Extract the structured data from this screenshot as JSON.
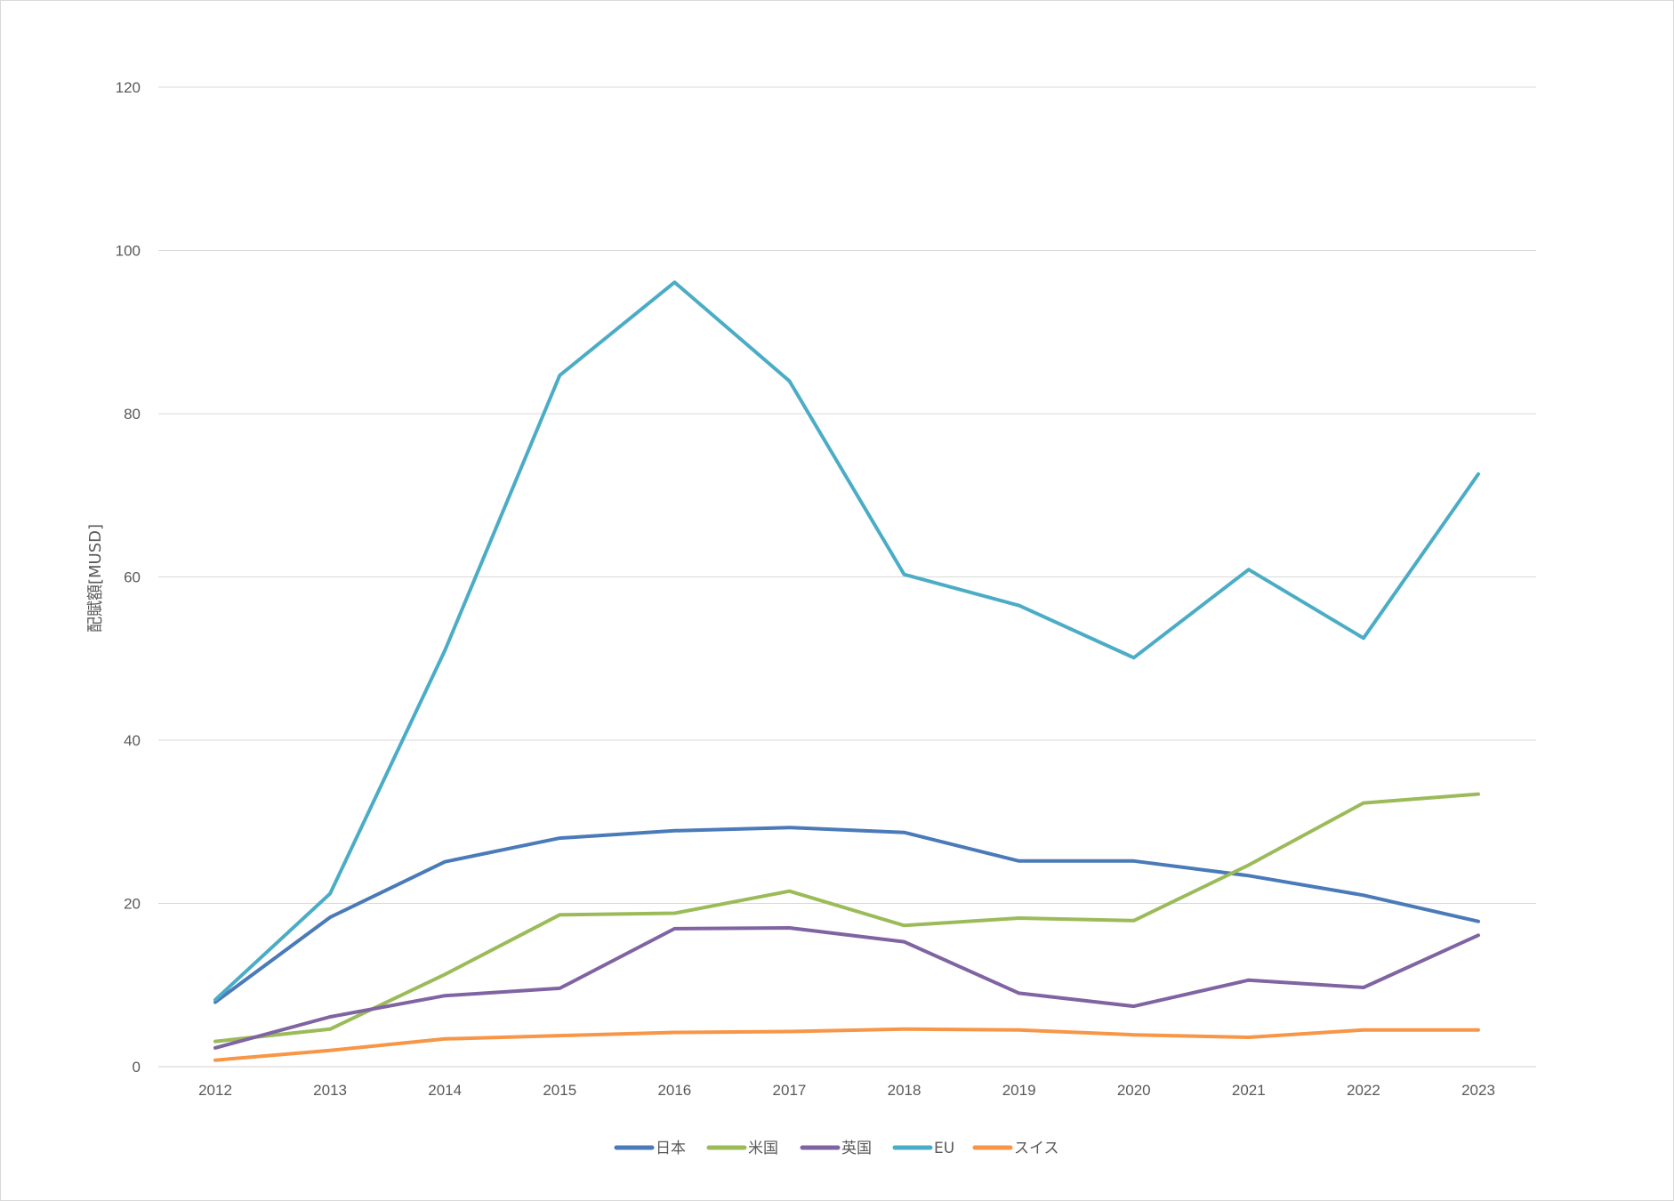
{
  "chart_data": {
    "type": "line",
    "title": "",
    "xlabel": "",
    "ylabel": "配賦額[MUSD]",
    "x": [
      "2012",
      "2013",
      "2014",
      "2015",
      "2016",
      "2017",
      "2018",
      "2019",
      "2020",
      "2021",
      "2022",
      "2023"
    ],
    "ylim": [
      0,
      120
    ],
    "yticks": [
      0,
      20,
      40,
      60,
      80,
      100,
      120
    ],
    "grid": true,
    "legend_position": "bottom",
    "series": [
      {
        "name": "日本",
        "color": "#4a7ab8",
        "values": [
          7.9,
          18.3,
          25.1,
          28.0,
          28.9,
          29.3,
          28.7,
          25.2,
          25.2,
          23.4,
          21.0,
          17.8
        ]
      },
      {
        "name": "米国",
        "color": "#9bbb59",
        "values": [
          3.1,
          4.6,
          11.3,
          18.6,
          18.8,
          21.5,
          17.3,
          18.2,
          17.9,
          24.7,
          32.3,
          33.4
        ]
      },
      {
        "name": "英国",
        "color": "#8064a2",
        "values": [
          2.3,
          6.1,
          8.7,
          9.6,
          16.9,
          17.0,
          15.3,
          9.0,
          7.4,
          10.6,
          9.7,
          16.1
        ]
      },
      {
        "name": "EU",
        "color": "#4bacc6",
        "values": [
          8.2,
          21.2,
          51.0,
          84.7,
          96.1,
          84.0,
          60.3,
          56.5,
          50.1,
          60.9,
          52.5,
          72.6
        ]
      },
      {
        "name": "スイス",
        "color": "#f79646",
        "values": [
          0.8,
          2.0,
          3.4,
          3.8,
          4.2,
          4.3,
          4.6,
          4.5,
          3.9,
          3.6,
          4.5,
          4.5
        ]
      }
    ]
  }
}
